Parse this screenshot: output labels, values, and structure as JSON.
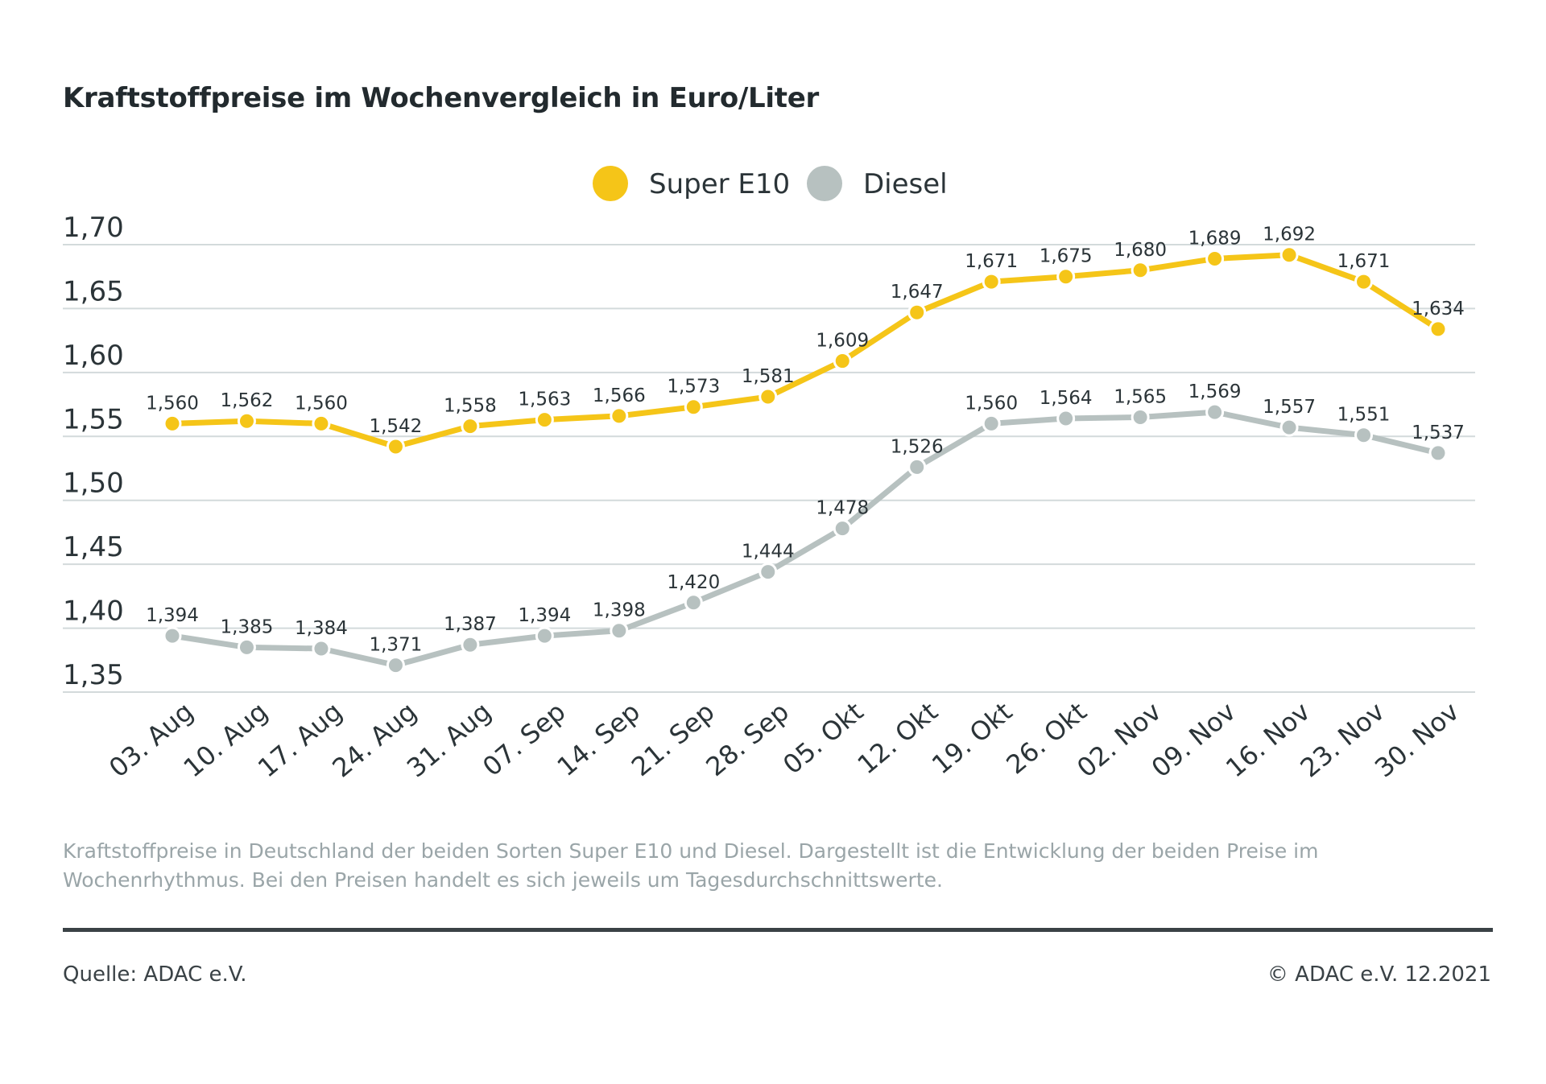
{
  "header": {
    "title": "Kraftstoffpreise im Wochenvergleich in Euro/Liter"
  },
  "footer": {
    "caption": "Kraftstoffpreise in Deutschland der beiden Sorten Super E10 und Diesel. Dargestellt ist die Entwicklung der beiden Preise im Wochenrhythmus. Bei den Preisen handelt es sich jeweils um Tagesdurchschnittswerte.",
    "source": "Quelle: ADAC e.V.",
    "copyright": "© ADAC e.V. 12.2021"
  },
  "chart_data": {
    "type": "line",
    "title": "Kraftstoffpreise im Wochenvergleich in Euro/Liter",
    "xlabel": "",
    "ylabel": "",
    "categories": [
      "03. Aug",
      "10. Aug",
      "17. Aug",
      "24. Aug",
      "31. Aug",
      "07. Sep",
      "14. Sep",
      "21. Sep",
      "28. Sep",
      "05. Okt",
      "12. Okt",
      "19. Okt",
      "26. Okt",
      "02. Nov",
      "09. Nov",
      "16. Nov",
      "23. Nov",
      "30. Nov"
    ],
    "ylim": [
      1.35,
      1.7
    ],
    "yticks": [
      1.35,
      1.4,
      1.45,
      1.5,
      1.55,
      1.6,
      1.65,
      1.7
    ],
    "ytick_labels": [
      "1,35",
      "1,40",
      "1,45",
      "1,50",
      "1,55",
      "1,60",
      "1,65",
      "1,70"
    ],
    "grid": true,
    "legend": "top-center",
    "series": [
      {
        "name": "Super E10",
        "color": "#f5c518",
        "values": [
          1.56,
          1.562,
          1.56,
          1.542,
          1.558,
          1.563,
          1.566,
          1.573,
          1.581,
          1.609,
          1.647,
          1.671,
          1.675,
          1.68,
          1.689,
          1.692,
          1.671,
          1.634
        ],
        "labels": [
          "1,560",
          "1,562",
          "1,560",
          "1,542",
          "1,558",
          "1,563",
          "1,566",
          "1,573",
          "1,581",
          "1,609",
          "1,647",
          "1,671",
          "1,675",
          "1,680",
          "1,689",
          "1,692",
          "1,671",
          "1,634"
        ]
      },
      {
        "name": "Diesel",
        "color": "#b7c1c0",
        "values": [
          1.394,
          1.385,
          1.384,
          1.371,
          1.387,
          1.394,
          1.398,
          1.42,
          1.444,
          1.478,
          1.526,
          1.56,
          1.564,
          1.565,
          1.569,
          1.557,
          1.551,
          1.537
        ],
        "labels": [
          "1,394",
          "1,385",
          "1,384",
          "1,371",
          "1,387",
          "1,394",
          "1,398",
          "1,420",
          "1,444",
          "1,478",
          "1,526",
          "1,560",
          "1,564",
          "1,565",
          "1,569",
          "1,557",
          "1,551",
          "1,537"
        ]
      }
    ]
  }
}
